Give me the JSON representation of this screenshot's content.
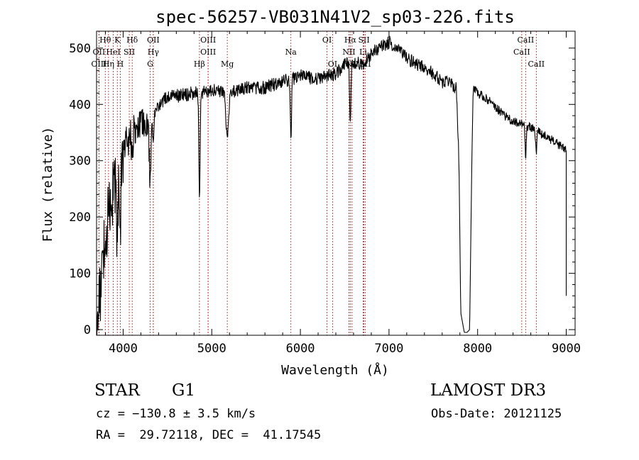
{
  "chart_data": {
    "type": "line",
    "title": "spec-56257-VB031N41V2_sp03-226.fits",
    "xlabel": "Wavelength (Å)",
    "ylabel": "Flux (relative)",
    "xlim": [
      3700,
      9100
    ],
    "ylim": [
      -10,
      530
    ],
    "x_ticks": [
      4000,
      5000,
      6000,
      7000,
      8000,
      9000
    ],
    "y_ticks": [
      0,
      100,
      200,
      300,
      400,
      500
    ],
    "continuum": {
      "x": [
        3700,
        3800,
        3900,
        4000,
        4100,
        4200,
        4300,
        4400,
        4500,
        4600,
        4800,
        5000,
        5200,
        5400,
        5600,
        5800,
        6000,
        6200,
        6400,
        6500,
        6600,
        6700,
        6800,
        6900,
        7000,
        7100,
        7200,
        7300,
        7400,
        7500,
        7600,
        7650,
        7700,
        7760,
        7790,
        7810,
        7850,
        7880,
        7910,
        7935,
        7950,
        8000,
        8100,
        8200,
        8300,
        8400,
        8500,
        8600,
        8700,
        8800,
        8900,
        9000
      ],
      "y": [
        0,
        170,
        255,
        320,
        350,
        365,
        375,
        395,
        415,
        415,
        420,
        425,
        420,
        430,
        430,
        440,
        450,
        445,
        455,
        470,
        475,
        470,
        490,
        500,
        510,
        500,
        485,
        470,
        465,
        455,
        440,
        440,
        435,
        430,
        300,
        30,
        -5,
        -5,
        0,
        300,
        430,
        420,
        410,
        395,
        380,
        370,
        365,
        360,
        350,
        340,
        330,
        320
      ]
    },
    "noise": [
      {
        "x0": 3700,
        "x1": 4000,
        "amp": 60
      },
      {
        "x0": 4000,
        "x1": 4300,
        "amp": 30
      },
      {
        "x0": 4300,
        "x1": 7790,
        "amp": 12
      },
      {
        "x0": 7950,
        "x1": 9000,
        "amp": 8
      }
    ],
    "absorption": [
      {
        "x": 3934,
        "depth": 130,
        "width": 10
      },
      {
        "x": 3968,
        "depth": 110,
        "width": 10
      },
      {
        "x": 4102,
        "depth": 60,
        "width": 10
      },
      {
        "x": 4305,
        "depth": 110,
        "width": 14
      },
      {
        "x": 4340,
        "depth": 60,
        "width": 10
      },
      {
        "x": 4861,
        "depth": 190,
        "width": 10
      },
      {
        "x": 5175,
        "depth": 80,
        "width": 20
      },
      {
        "x": 5893,
        "depth": 110,
        "width": 10
      },
      {
        "x": 6563,
        "depth": 110,
        "width": 10
      },
      {
        "x": 8542,
        "depth": 55,
        "width": 10
      },
      {
        "x": 8662,
        "depth": 40,
        "width": 10
      }
    ],
    "lines": [
      {
        "label": "Hθ",
        "x": 3798,
        "row": 0
      },
      {
        "label": "K",
        "x": 3934,
        "row": 0
      },
      {
        "label": "Hδ",
        "x": 4102,
        "row": 0
      },
      {
        "label": "OII",
        "x": 4340,
        "row": 0
      },
      {
        "label": "OIII",
        "x": 4959,
        "row": 0
      },
      {
        "label": "OI",
        "x": 6300,
        "row": 0
      },
      {
        "label": "Hα",
        "x": 6563,
        "row": 0
      },
      {
        "label": "SII",
        "x": 6717,
        "row": 0
      },
      {
        "label": "CaII",
        "x": 8542,
        "row": 0
      },
      {
        "label": "OII",
        "x": 3727,
        "row": 1
      },
      {
        "label": "HeI",
        "x": 3889,
        "row": 1
      },
      {
        "label": "SII",
        "x": 4069,
        "row": 1
      },
      {
        "label": "Hγ",
        "x": 4340,
        "row": 1
      },
      {
        "label": "OIII",
        "x": 4959,
        "row": 1
      },
      {
        "label": "Na",
        "x": 5893,
        "row": 1
      },
      {
        "label": "NII",
        "x": 6548,
        "row": 1
      },
      {
        "label": "Li",
        "x": 6708,
        "row": 1
      },
      {
        "label": "CaII",
        "x": 8498,
        "row": 1
      },
      {
        "label": "OIII",
        "x": 3727,
        "row": 2
      },
      {
        "label": "Hη",
        "x": 3835,
        "row": 2
      },
      {
        "label": "H",
        "x": 3968,
        "row": 2
      },
      {
        "label": "G",
        "x": 4305,
        "row": 2
      },
      {
        "label": "Hβ",
        "x": 4861,
        "row": 2
      },
      {
        "label": "Mg",
        "x": 5175,
        "row": 2
      },
      {
        "label": "OI",
        "x": 6363,
        "row": 2
      },
      {
        "label": "NII",
        "x": 6583,
        "row": 2
      },
      {
        "label": "SII",
        "x": 6731,
        "row": 2
      },
      {
        "label": "CaII",
        "x": 8662,
        "row": 2
      }
    ],
    "line_color": "#b22222",
    "curve_color": "#000000"
  },
  "info": {
    "class_label": "STAR",
    "subclass": "G1",
    "survey": "LAMOST DR3",
    "cz": "cz = −130.8 ± 3.5 km/s",
    "obs_date": "Obs-Date: 20121125",
    "coords": "RA =  29.72118, DEC =  41.17545"
  }
}
